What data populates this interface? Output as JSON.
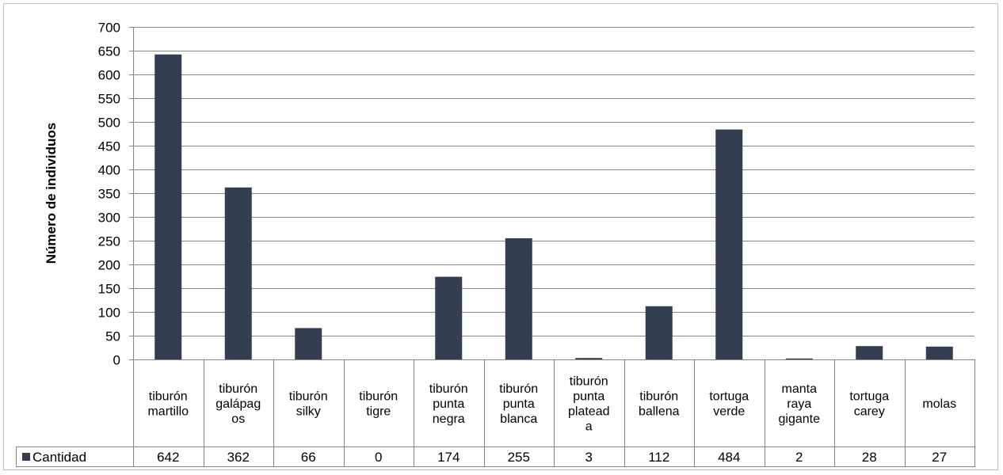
{
  "chart_data": {
    "type": "bar",
    "ylabel": "Número de individuos",
    "ylim": [
      0,
      700
    ],
    "ytick_step": 50,
    "grid": true,
    "legend_placement": "bottom-left (data table)",
    "series": [
      {
        "name": "Cantidad",
        "color": "#333f50",
        "values": [
          642,
          362,
          66,
          0,
          174,
          255,
          3,
          112,
          484,
          2,
          28,
          27
        ]
      }
    ],
    "categories": [
      [
        "tiburón",
        "martillo"
      ],
      [
        "tiburón",
        "galápag",
        "os"
      ],
      [
        "tiburón",
        "silky"
      ],
      [
        "tiburón",
        "tigre"
      ],
      [
        "tiburón",
        "punta",
        "negra"
      ],
      [
        "tiburón",
        "punta",
        "blanca"
      ],
      [
        "tiburón",
        "punta",
        "platead",
        "a"
      ],
      [
        "tiburón",
        "ballena"
      ],
      [
        "tortuga",
        "verde"
      ],
      [
        "manta",
        "raya",
        "gigante"
      ],
      [
        "tortuga",
        "carey"
      ],
      [
        "molas"
      ]
    ],
    "table_values": [
      "642",
      "362",
      "66",
      "0",
      "174",
      "255",
      "3",
      "112",
      "484",
      "2",
      "28",
      "27"
    ]
  }
}
